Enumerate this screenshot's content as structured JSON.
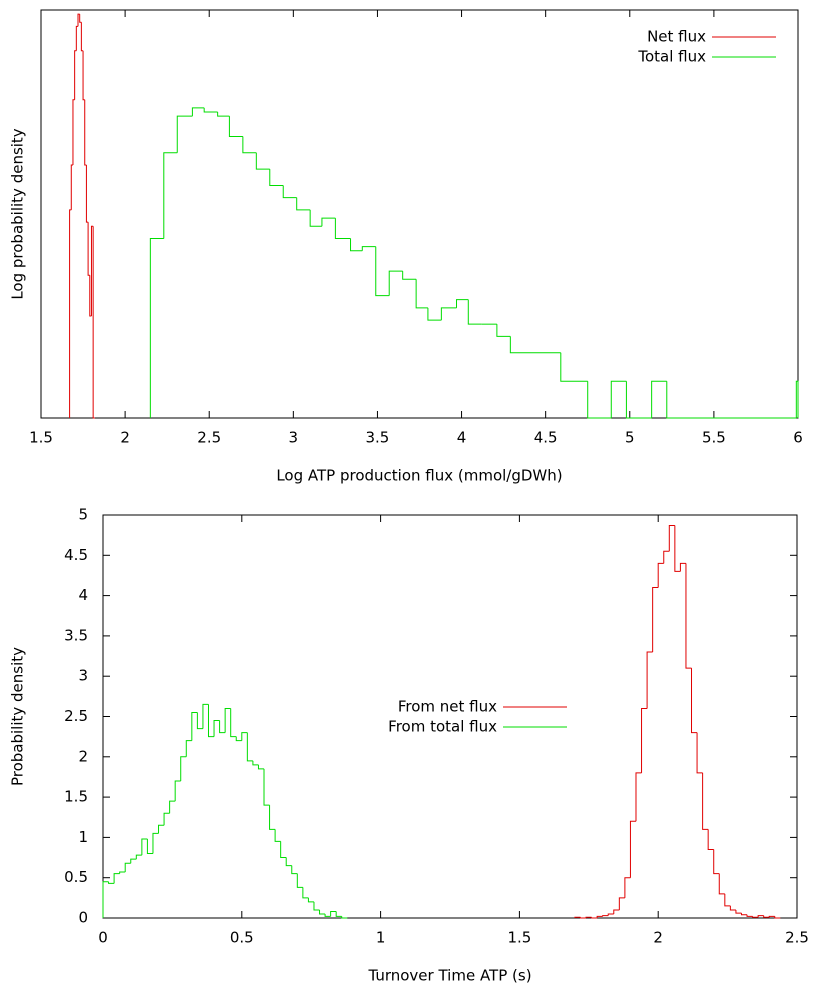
{
  "chart_data": [
    {
      "type": "histogram",
      "xlabel": "Log ATP production flux (mmol/gDWh)",
      "ylabel": "Log probability density",
      "xlim": [
        1.5,
        6
      ],
      "ylim": [
        0,
        100
      ],
      "xticks": [
        1.5,
        2,
        2.5,
        3,
        3.5,
        4,
        4.5,
        5,
        5.5,
        6
      ],
      "legend": "top-right",
      "series": [
        {
          "name": "Net flux",
          "color": "#e00000",
          "bins": [
            1.67,
            1.68,
            1.69,
            1.7,
            1.71,
            1.72,
            1.73,
            1.74,
            1.75,
            1.76,
            1.77,
            1.78,
            1.79,
            1.8,
            1.81,
            1.82
          ],
          "values": [
            51,
            62,
            78,
            90,
            96,
            99,
            97,
            90,
            78,
            62,
            48,
            35,
            25,
            47,
            0
          ]
        },
        {
          "name": "Total flux",
          "color": "#00dd00",
          "bins": [
            2.15,
            2.23,
            2.31,
            2.4,
            2.47,
            2.55,
            2.62,
            2.7,
            2.78,
            2.86,
            2.94,
            3.02,
            3.1,
            3.17,
            3.25,
            3.34,
            3.41,
            3.49,
            3.57,
            3.65,
            3.73,
            3.8,
            3.88,
            3.97,
            4.04,
            4.12,
            4.21,
            4.29,
            4.59,
            4.75,
            4.89,
            4.98,
            5.13,
            5.22,
            5.99,
            6.0
          ],
          "values": [
            44,
            65,
            74,
            76,
            75,
            74,
            69,
            65,
            61,
            57,
            54,
            51,
            47,
            49,
            44,
            41,
            42,
            30,
            36,
            34,
            27,
            24,
            27,
            29,
            23,
            23,
            20,
            16,
            9,
            0,
            9,
            0,
            9,
            0,
            9
          ]
        }
      ]
    },
    {
      "type": "histogram",
      "xlabel": "Turnover Time ATP (s)",
      "ylabel": "Probability density",
      "xlim": [
        0,
        2.5
      ],
      "ylim": [
        0,
        5
      ],
      "xticks": [
        0,
        0.5,
        1,
        1.5,
        2,
        2.5
      ],
      "yticks": [
        0,
        0.5,
        1,
        1.5,
        2,
        2.5,
        3,
        3.5,
        4,
        4.5,
        5
      ],
      "legend": "center",
      "series": [
        {
          "name": "From net flux",
          "color": "#e00000",
          "bins": [
            1.7,
            1.72,
            1.74,
            1.76,
            1.78,
            1.8,
            1.82,
            1.84,
            1.86,
            1.88,
            1.9,
            1.92,
            1.94,
            1.96,
            1.98,
            2.0,
            2.02,
            2.04,
            2.06,
            2.08,
            2.1,
            2.12,
            2.14,
            2.16,
            2.18,
            2.2,
            2.22,
            2.24,
            2.26,
            2.28,
            2.3,
            2.32,
            2.34,
            2.36,
            2.38,
            2.4,
            2.42,
            2.44
          ],
          "values": [
            0.01,
            0,
            0.01,
            0,
            0.02,
            0.03,
            0.05,
            0.1,
            0.25,
            0.5,
            1.2,
            1.8,
            2.6,
            3.3,
            4.1,
            4.4,
            4.55,
            4.87,
            4.3,
            4.4,
            3.1,
            2.3,
            1.8,
            1.1,
            0.85,
            0.55,
            0.3,
            0.15,
            0.1,
            0.06,
            0.04,
            0.02,
            0.01,
            0.03,
            0.01,
            0.02,
            0
          ]
        },
        {
          "name": "From total flux",
          "color": "#00dd00",
          "bins": [
            0,
            0.02,
            0.04,
            0.06,
            0.08,
            0.1,
            0.12,
            0.14,
            0.16,
            0.18,
            0.2,
            0.22,
            0.24,
            0.26,
            0.28,
            0.3,
            0.32,
            0.34,
            0.36,
            0.38,
            0.4,
            0.42,
            0.44,
            0.46,
            0.48,
            0.5,
            0.52,
            0.54,
            0.56,
            0.58,
            0.6,
            0.62,
            0.64,
            0.66,
            0.68,
            0.7,
            0.72,
            0.74,
            0.76,
            0.78,
            0.8,
            0.82,
            0.84,
            0.86,
            0.88
          ],
          "values": [
            0.45,
            0.43,
            0.55,
            0.57,
            0.68,
            0.73,
            0.78,
            0.98,
            0.8,
            1.05,
            1.15,
            1.3,
            1.45,
            1.7,
            2.0,
            2.2,
            2.55,
            2.35,
            2.65,
            2.25,
            2.45,
            2.3,
            2.6,
            2.25,
            2.2,
            2.3,
            1.95,
            1.9,
            1.85,
            1.4,
            1.1,
            0.95,
            0.75,
            0.65,
            0.55,
            0.38,
            0.25,
            0.2,
            0.1,
            0.05,
            0.02,
            0.08,
            0.02,
            0
          ]
        }
      ]
    }
  ]
}
